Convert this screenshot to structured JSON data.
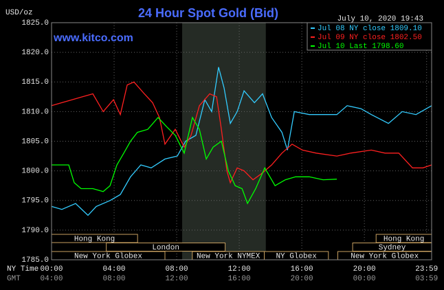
{
  "chart_data": {
    "type": "line",
    "title": "24 Hour Spot Gold (Bid)",
    "unit_label": "USD/oz",
    "timestamp": "July 10, 2020 19:43",
    "website": "www.kitco.com",
    "x_row_labels": [
      "NY Time",
      "GMT"
    ],
    "xlim": [
      0,
      24.3
    ],
    "xticks": [
      {
        "value": 0,
        "label": "00:00",
        "gmt": "04:00"
      },
      {
        "value": 4,
        "label": "04:00",
        "gmt": "08:00"
      },
      {
        "value": 8,
        "label": "08:00",
        "gmt": "12:00"
      },
      {
        "value": 12,
        "label": "12:00",
        "gmt": "16:00"
      },
      {
        "value": 16,
        "label": "16:00",
        "gmt": "20:00"
      },
      {
        "value": 20,
        "label": "20:00",
        "gmt": "00:00"
      },
      {
        "value": 23.98,
        "label": "23:59",
        "gmt": "03:59"
      }
    ],
    "ylim": [
      1785,
      1825
    ],
    "yticks": [
      {
        "value": 1785,
        "label": "1785.0"
      },
      {
        "value": 1790,
        "label": "1790.0"
      },
      {
        "value": 1795,
        "label": "1795.0"
      },
      {
        "value": 1800,
        "label": "1800.0"
      },
      {
        "value": 1805,
        "label": "1805.0"
      },
      {
        "value": 1810,
        "label": "1810.0"
      },
      {
        "value": 1815,
        "label": "1815.0"
      },
      {
        "value": 1820,
        "label": "1820.0"
      },
      {
        "value": 1825,
        "label": "1825.0"
      }
    ],
    "grid": true,
    "highlight_range": [
      8.35,
      13.7
    ],
    "sessions": [
      {
        "label": "Hong Kong",
        "row": 0,
        "start": 0,
        "end": 5.5
      },
      {
        "label": "Hong Kong",
        "row": 0,
        "start": 20.75,
        "end": 24.3
      },
      {
        "label": "London",
        "row": 1,
        "start": 3.5,
        "end": 11.1
      },
      {
        "label": "Sydney",
        "row": 1,
        "start": 19.25,
        "end": 24.3
      },
      {
        "label": "New York Globex",
        "row": 2,
        "start": 0,
        "end": 7.25
      },
      {
        "label": "New York NYMEX",
        "row": 2,
        "start": 9.0,
        "end": 13.6
      },
      {
        "label": "NY Globex",
        "row": 2,
        "start": 13.6,
        "end": 17.7
      },
      {
        "label": "New York Globex",
        "row": 2,
        "start": 18.3,
        "end": 24.3
      }
    ],
    "series": [
      {
        "name": "Jul 08 NY close 1809.10",
        "color": "#33ccff",
        "x": [
          0,
          0.66,
          1.54,
          2.33,
          2.86,
          3.74,
          4.4,
          5.05,
          5.71,
          6.37,
          7.25,
          8.04,
          8.57,
          9.23,
          9.8,
          10.24,
          10.68,
          11.03,
          11.43,
          11.87,
          12.31,
          12.97,
          13.49,
          14.07,
          14.73,
          15.08,
          15.52,
          16.48,
          17.36,
          18.24,
          18.9,
          19.78,
          20.44,
          21.54,
          22.42,
          23.3,
          24.3
        ],
        "values": [
          1794,
          1793.5,
          1794.5,
          1792.5,
          1794,
          1795,
          1796,
          1799,
          1801,
          1800.5,
          1802,
          1802.5,
          1805,
          1806,
          1812,
          1810,
          1817.5,
          1814,
          1808,
          1810,
          1813.5,
          1811.5,
          1813,
          1809,
          1806.5,
          1803.5,
          1810,
          1809.5,
          1809.5,
          1809.5,
          1811,
          1810.5,
          1809.5,
          1808,
          1810,
          1809.5,
          1811
        ]
      },
      {
        "name": "Jul 09 NY close 1802.50",
        "color": "#ff2020",
        "x": [
          0,
          0.66,
          1.32,
          1.98,
          2.64,
          3.3,
          3.96,
          4.4,
          4.84,
          5.27,
          5.93,
          6.46,
          6.9,
          7.25,
          7.91,
          8.48,
          8.92,
          9.45,
          10.11,
          10.55,
          10.86,
          11.21,
          11.43,
          11.87,
          12.31,
          12.88,
          13.41,
          14.07,
          14.73,
          15.38,
          16.04,
          16.92,
          18.24,
          19.12,
          20.44,
          21.32,
          22.2,
          23.08,
          23.74,
          24.3
        ],
        "values": [
          1811,
          1811.5,
          1812,
          1812.5,
          1813,
          1810,
          1812,
          1809.5,
          1814.5,
          1815,
          1813,
          1811.5,
          1809,
          1804.5,
          1807,
          1804,
          1806,
          1811,
          1813,
          1812.5,
          1807,
          1800,
          1798,
          1800.5,
          1800,
          1798.5,
          1799.5,
          1801,
          1803,
          1804.5,
          1803.5,
          1803,
          1802.5,
          1803,
          1803.5,
          1803,
          1803,
          1800.5,
          1800.5,
          1801
        ]
      },
      {
        "name": "Jul 10 Last 1798.60",
        "color": "#00ff00",
        "x": [
          0,
          1.1,
          1.45,
          1.89,
          2.64,
          3.3,
          3.74,
          4.18,
          4.62,
          5.05,
          5.49,
          6.15,
          6.81,
          7.34,
          7.91,
          8.48,
          9.01,
          9.45,
          9.89,
          10.33,
          10.86,
          11.3,
          11.74,
          12.18,
          12.53,
          13.05,
          13.63,
          14.29,
          14.95,
          15.6,
          16.48,
          17.36,
          18.24
        ],
        "values": [
          1801,
          1801,
          1798,
          1797,
          1797,
          1796.5,
          1797.5,
          1801,
          1803,
          1805,
          1806.5,
          1807,
          1809,
          1807.5,
          1806,
          1803,
          1809,
          1807,
          1802,
          1804,
          1805,
          1800,
          1797.5,
          1797,
          1794.5,
          1797,
          1800.5,
          1797.5,
          1798.5,
          1799,
          1799,
          1798.5,
          1798.6
        ]
      }
    ]
  }
}
